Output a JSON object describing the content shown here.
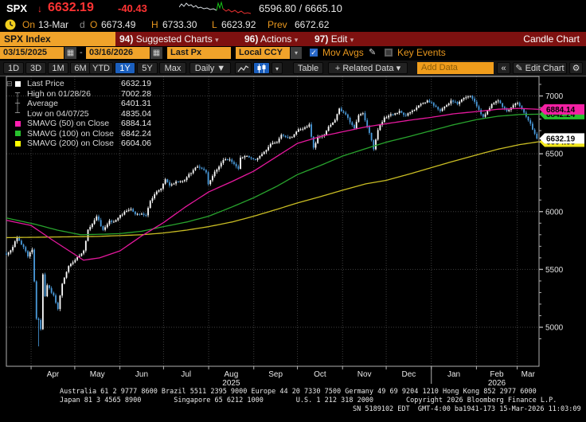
{
  "header": {
    "ticker": "SPX",
    "direction_arrow": "↓",
    "last": "6632.19",
    "change": "-40.43",
    "bid_ask": "6596.80 / 6665.10",
    "session": {
      "on_label": "On",
      "date": "13-Mar",
      "freq": "d",
      "o_label": "O",
      "open": "6673.49",
      "h_label": "H",
      "high": "6733.30",
      "l_label": "L",
      "low": "6623.92",
      "prev_label": "Prev",
      "prev": "6672.62"
    },
    "sparkline": {
      "gray": [
        [
          0,
          8
        ],
        [
          3,
          4
        ],
        [
          6,
          7
        ],
        [
          9,
          3
        ],
        [
          12,
          6
        ],
        [
          15,
          5
        ],
        [
          18,
          8
        ],
        [
          21,
          6
        ],
        [
          24,
          9
        ],
        [
          27,
          8
        ],
        [
          31,
          10
        ],
        [
          35,
          9
        ],
        [
          39,
          11
        ],
        [
          43,
          10
        ],
        [
          47,
          12
        ]
      ],
      "green": [
        [
          47,
          12
        ],
        [
          49,
          3
        ],
        [
          51,
          9
        ],
        [
          53,
          2
        ],
        [
          55,
          10
        ]
      ],
      "red": [
        [
          55,
          10
        ],
        [
          59,
          13
        ],
        [
          62,
          11
        ],
        [
          66,
          14
        ],
        [
          70,
          12
        ],
        [
          74,
          15
        ],
        [
          78,
          13
        ],
        [
          82,
          16
        ],
        [
          86,
          15
        ],
        [
          90,
          16
        ]
      ]
    }
  },
  "menubar": {
    "security": "SPX Index",
    "items": [
      {
        "num": "94)",
        "label": "Suggested Charts",
        "arrow": "▾"
      },
      {
        "num": "96)",
        "label": "Actions",
        "arrow": "▾"
      },
      {
        "num": "97)",
        "label": "Edit",
        "arrow": "▾"
      }
    ],
    "right_label": "Candle Chart"
  },
  "controls": {
    "date_from": "03/15/2025",
    "range_dash": "-",
    "date_to": "03/16/2026",
    "field": "Last Px",
    "currency": "Local CCY",
    "mov_avgs_label": "Mov Avgs",
    "key_events_label": "Key Events",
    "calendar_icon": "▦",
    "dropdown_icon": "▾",
    "check_icon": "✓",
    "pencil_icon": "✎"
  },
  "toolbar": {
    "ranges": [
      "1D",
      "3D",
      "1M",
      "6M",
      "YTD",
      "1Y",
      "5Y",
      "Max"
    ],
    "selected_range": "1Y",
    "frequency": "Daily ▼",
    "table_label": "Table",
    "related_data_label": "+ Related Data ▾",
    "add_data_placeholder": "Add Data",
    "collapse_label": "«",
    "edit_chart_label": "✎ Edit Chart",
    "gear_icon": "⚙"
  },
  "legend": {
    "rows": [
      {
        "marker": "square",
        "color": "#ffffff",
        "label": "Last Price",
        "value": "6632.19"
      },
      {
        "marker": "high",
        "color": "#9a9a9a",
        "label": "High on 01/28/26",
        "value": "7002.28"
      },
      {
        "marker": "avg",
        "color": "#9a9a9a",
        "label": "Average",
        "value": "6401.31"
      },
      {
        "marker": "low",
        "color": "#9a9a9a",
        "label": "Low on 04/07/25",
        "value": "4835.04"
      },
      {
        "marker": "square",
        "color": "#ff1fb0",
        "label": "SMAVG (50)  on Close",
        "value": "6884.14"
      },
      {
        "marker": "square",
        "color": "#27c12e",
        "label": "SMAVG (100)  on Close",
        "value": "6842.24"
      },
      {
        "marker": "square",
        "color": "#ffff00",
        "label": "SMAVG (200)  on Close",
        "value": "6604.06"
      }
    ],
    "collapse_icon": "⊟"
  },
  "chart_data": {
    "type": "candlestick",
    "symbol": "SPX Index",
    "period": "03/15/2025 - 03/16/2026",
    "last_price": 6632.19,
    "high": {
      "date": "01/28/26",
      "value": 7002.28,
      "trading_day": 216
    },
    "low": {
      "date": "04/07/25",
      "value": 4835.04,
      "trading_day": 15
    },
    "average": 6401.31,
    "y_axis": {
      "ticks": [
        5000,
        5500,
        6000,
        6500,
        7000
      ],
      "minor_step": 100,
      "label_color": "#e0e0e0"
    },
    "x_axis": {
      "months": [
        "Apr",
        "May",
        "Jun",
        "Jul",
        "Aug",
        "Sep",
        "Oct",
        "Nov",
        "Dec",
        "Jan",
        "Feb",
        "Mar"
      ],
      "month_start_days": [
        17,
        47,
        78,
        108,
        139,
        170,
        200,
        231,
        261,
        292,
        323,
        351
      ],
      "calendar_days": 366,
      "year_labels": [
        {
          "text": "2025",
          "month_index": 4
        },
        {
          "text": "2026",
          "month_index": 10
        }
      ],
      "year_divider_day": 292
    },
    "trading_days": 248,
    "close_anchors": [
      [
        0,
        5628
      ],
      [
        2,
        5665
      ],
      [
        5,
        5776
      ],
      [
        8,
        5693
      ],
      [
        10,
        5612
      ],
      [
        12,
        5671
      ],
      [
        13,
        5396
      ],
      [
        14,
        5074
      ],
      [
        15,
        5062
      ],
      [
        16,
        4983
      ],
      [
        17,
        5457
      ],
      [
        18,
        5268
      ],
      [
        19,
        5363
      ],
      [
        22,
        5276
      ],
      [
        24,
        5158
      ],
      [
        26,
        5376
      ],
      [
        29,
        5529
      ],
      [
        31,
        5561
      ],
      [
        33,
        5605
      ],
      [
        36,
        5663
      ],
      [
        38,
        5844
      ],
      [
        40,
        5893
      ],
      [
        42,
        5958
      ],
      [
        45,
        5842
      ],
      [
        48,
        5921
      ],
      [
        50,
        5912
      ],
      [
        53,
        5970
      ],
      [
        56,
        6006
      ],
      [
        58,
        6022
      ],
      [
        60,
        5977
      ],
      [
        63,
        5981
      ],
      [
        65,
        5968
      ],
      [
        67,
        6092
      ],
      [
        70,
        6173
      ],
      [
        72,
        6198
      ],
      [
        74,
        6279
      ],
      [
        76,
        6226
      ],
      [
        79,
        6260
      ],
      [
        82,
        6264
      ],
      [
        84,
        6297
      ],
      [
        87,
        6359
      ],
      [
        89,
        6389
      ],
      [
        91,
        6371
      ],
      [
        93,
        6339
      ],
      [
        94,
        6238
      ],
      [
        97,
        6345
      ],
      [
        99,
        6389
      ],
      [
        101,
        6446
      ],
      [
        104,
        6450
      ],
      [
        106,
        6411
      ],
      [
        108,
        6370
      ],
      [
        109,
        6467
      ],
      [
        112,
        6481
      ],
      [
        114,
        6460
      ],
      [
        116,
        6448
      ],
      [
        118,
        6481
      ],
      [
        121,
        6532
      ],
      [
        123,
        6584
      ],
      [
        126,
        6600
      ],
      [
        128,
        6664
      ],
      [
        131,
        6638
      ],
      [
        133,
        6644
      ],
      [
        136,
        6711
      ],
      [
        138,
        6716
      ],
      [
        141,
        6754
      ],
      [
        143,
        6553
      ],
      [
        145,
        6645
      ],
      [
        148,
        6664
      ],
      [
        150,
        6735
      ],
      [
        153,
        6792
      ],
      [
        155,
        6891
      ],
      [
        158,
        6840
      ],
      [
        160,
        6772
      ],
      [
        162,
        6720
      ],
      [
        164,
        6833
      ],
      [
        166,
        6851
      ],
      [
        168,
        6734
      ],
      [
        170,
        6617
      ],
      [
        171,
        6539
      ],
      [
        173,
        6705
      ],
      [
        176,
        6813
      ],
      [
        178,
        6830
      ],
      [
        181,
        6850
      ],
      [
        183,
        6870
      ],
      [
        186,
        6830
      ],
      [
        188,
        6860
      ],
      [
        191,
        6900
      ],
      [
        193,
        6930
      ],
      [
        196,
        6960
      ],
      [
        198,
        6940
      ],
      [
        200,
        6905
      ],
      [
        202,
        6870
      ],
      [
        205,
        6920
      ],
      [
        207,
        6960
      ],
      [
        210,
        6930
      ],
      [
        212,
        6970
      ],
      [
        215,
        6995
      ],
      [
        216,
        7002
      ],
      [
        218,
        6950
      ],
      [
        220,
        6880
      ],
      [
        222,
        6820
      ],
      [
        224,
        6870
      ],
      [
        226,
        6930
      ],
      [
        229,
        6960
      ],
      [
        231,
        6905
      ],
      [
        233,
        6870
      ],
      [
        236,
        6920
      ],
      [
        238,
        6940
      ],
      [
        240,
        6890
      ],
      [
        242,
        6820
      ],
      [
        244,
        6760
      ],
      [
        246,
        6673
      ],
      [
        247,
        6632.19
      ]
    ],
    "ma_paths": {
      "ma50": [
        [
          0,
          5925
        ],
        [
          17,
          5880
        ],
        [
          31,
          5760
        ],
        [
          53,
          5580
        ],
        [
          64,
          5600
        ],
        [
          78,
          5660
        ],
        [
          93,
          5790
        ],
        [
          108,
          5905
        ],
        [
          123,
          6040
        ],
        [
          139,
          6170
        ],
        [
          155,
          6260
        ],
        [
          170,
          6350
        ],
        [
          185,
          6470
        ],
        [
          200,
          6590
        ],
        [
          216,
          6650
        ],
        [
          231,
          6690
        ],
        [
          246,
          6730
        ],
        [
          261,
          6760
        ],
        [
          277,
          6790
        ],
        [
          292,
          6815
        ],
        [
          307,
          6845
        ],
        [
          323,
          6865
        ],
        [
          338,
          6885
        ],
        [
          353,
          6892
        ],
        [
          366,
          6884.14
        ]
      ],
      "ma100": [
        [
          0,
          5945
        ],
        [
          20,
          5890
        ],
        [
          35,
          5840
        ],
        [
          51,
          5800
        ],
        [
          68,
          5805
        ],
        [
          78,
          5810
        ],
        [
          93,
          5830
        ],
        [
          108,
          5870
        ],
        [
          124,
          5910
        ],
        [
          139,
          5960
        ],
        [
          155,
          6040
        ],
        [
          170,
          6120
        ],
        [
          186,
          6220
        ],
        [
          200,
          6320
        ],
        [
          216,
          6400
        ],
        [
          231,
          6480
        ],
        [
          247,
          6545
        ],
        [
          261,
          6600
        ],
        [
          277,
          6650
        ],
        [
          292,
          6700
        ],
        [
          307,
          6750
        ],
        [
          323,
          6795
        ],
        [
          338,
          6825
        ],
        [
          353,
          6840
        ],
        [
          366,
          6842.24
        ]
      ],
      "ma200": [
        [
          0,
          5775
        ],
        [
          31,
          5780
        ],
        [
          62,
          5785
        ],
        [
          93,
          5800
        ],
        [
          108,
          5815
        ],
        [
          124,
          5840
        ],
        [
          139,
          5870
        ],
        [
          155,
          5910
        ],
        [
          170,
          5960
        ],
        [
          186,
          6020
        ],
        [
          200,
          6075
        ],
        [
          216,
          6130
        ],
        [
          231,
          6185
        ],
        [
          247,
          6240
        ],
        [
          261,
          6270
        ],
        [
          277,
          6325
        ],
        [
          292,
          6380
        ],
        [
          307,
          6435
        ],
        [
          323,
          6490
        ],
        [
          338,
          6540
        ],
        [
          353,
          6580
        ],
        [
          366,
          6604.06
        ]
      ]
    },
    "colors": {
      "candle_up": "#ffffff",
      "candle_down": "#4a9bdc",
      "ma50": "#e5189d",
      "ma100": "#28a32d",
      "ma200": "#c9bd23",
      "grid": "#3f3f3f",
      "frame": "#b0b0b0"
    },
    "axis_tags": [
      {
        "value": "6842.24",
        "price": 6842.24,
        "bg": "#27c12e",
        "z": 1
      },
      {
        "value": "6884.14",
        "price": 6884.14,
        "bg": "#f520a4",
        "z": 2
      },
      {
        "value": "6604.06",
        "price": 6604.06,
        "bg": "#f0e51c",
        "z": 1
      },
      {
        "value": "6632.19",
        "price": 6632.19,
        "bg": "#ffffff",
        "z": 2
      }
    ]
  },
  "footer": {
    "line1": "Australia 61 2 9777 8600 Brazil 5511 2395 9000 Europe 44 20 7330 7500 Germany 49 69 9204 1210 Hong Kong 852 2977 6000",
    "line2": "Japan 81 3 4565 8900        Singapore 65 6212 1000        U.S. 1 212 318 2000        Copyright 2026 Bloomberg Finance L.P.",
    "line3": "SN 5189102 EDT  GMT-4:00 ba1941-173 15-Mar-2026 11:03:09"
  }
}
